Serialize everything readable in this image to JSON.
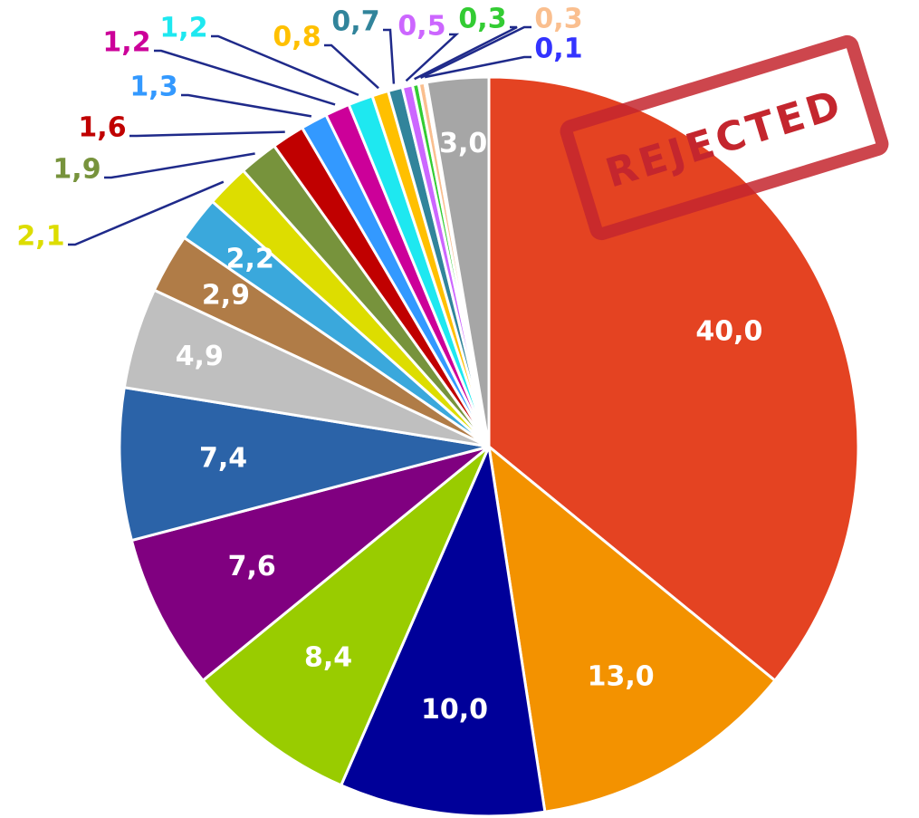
{
  "chart_data": {
    "type": "pie",
    "values": [
      40.0,
      13.0,
      10.0,
      8.4,
      7.6,
      7.4,
      4.9,
      2.9,
      2.2,
      2.1,
      1.9,
      1.6,
      1.3,
      1.2,
      1.2,
      0.8,
      0.7,
      0.5,
      0.3,
      0.3,
      0.1,
      3.0
    ],
    "value_labels": [
      "40,0",
      "13,0",
      "10,0",
      "8,4",
      "7,6",
      "7,4",
      "4,9",
      "2,9",
      "2,2",
      "2,1",
      "1,9",
      "1,6",
      "1,3",
      "1,2",
      "1,2",
      "0,8",
      "0,7",
      "0,5",
      "0,3",
      "0,3",
      "0,1",
      "3,0"
    ],
    "colors": [
      "#e44322",
      "#f39200",
      "#000099",
      "#99cc00",
      "#800080",
      "#2b63a8",
      "#bfbfbf",
      "#b07c47",
      "#3aa8dc",
      "#dddd00",
      "#77933c",
      "#c00000",
      "#3399ff",
      "#cc0099",
      "#1ee8f0",
      "#ffc000",
      "#31849b",
      "#cc66ff",
      "#33cc33",
      "#fabf8f",
      "#3333ff",
      "#a6a6a6"
    ],
    "stamp": "REJECTED"
  }
}
